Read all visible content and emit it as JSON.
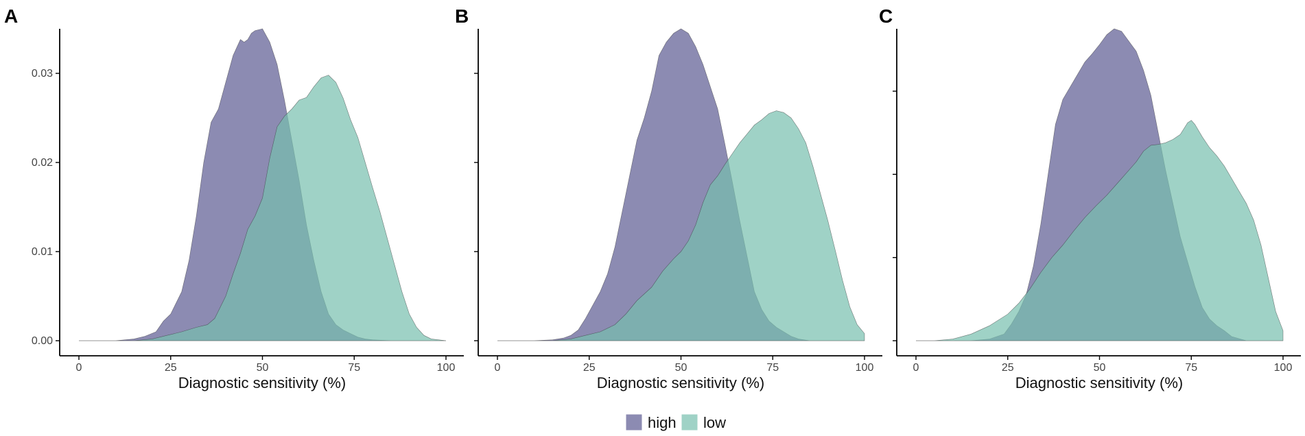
{
  "colors": {
    "high": "#5b5a92",
    "low": "#76bfae",
    "axis": "#000000"
  },
  "legend": {
    "items": [
      {
        "key": "high",
        "label": "high"
      },
      {
        "key": "low",
        "label": "low"
      }
    ]
  },
  "chart_data": [
    {
      "type": "area",
      "panel_label": "A",
      "xlabel": "Diagnostic sensitivity (%)",
      "ylabel": "",
      "xlim": [
        0,
        100
      ],
      "ylim": [
        0,
        0.035
      ],
      "x_ticks": [
        0,
        25,
        50,
        75,
        100
      ],
      "x_tick_labels": [
        "0",
        "25",
        "50",
        "75",
        "100"
      ],
      "y_ticks": [
        0,
        0.01,
        0.02,
        0.03
      ],
      "y_tick_labels": [
        "0.00",
        "0.01",
        "0.02",
        "0.03"
      ],
      "series": [
        {
          "name": "high",
          "x": [
            0,
            10,
            15,
            18,
            21,
            23,
            25,
            28,
            30,
            32,
            34,
            36,
            38,
            40,
            42,
            44,
            45,
            46,
            47,
            48,
            50,
            52,
            54,
            56,
            58,
            60,
            62,
            64,
            66,
            68,
            70,
            72,
            74,
            76,
            78,
            80,
            85,
            90,
            100
          ],
          "values": [
            0,
            0,
            0.0002,
            0.0005,
            0.001,
            0.0022,
            0.003,
            0.0055,
            0.009,
            0.014,
            0.02,
            0.0245,
            0.026,
            0.029,
            0.032,
            0.0338,
            0.0335,
            0.0338,
            0.0345,
            0.0348,
            0.035,
            0.0335,
            0.031,
            0.027,
            0.0225,
            0.018,
            0.013,
            0.009,
            0.0055,
            0.003,
            0.0018,
            0.0012,
            0.0008,
            0.0004,
            0.0002,
            0.0001,
            0,
            0,
            0
          ]
        },
        {
          "name": "low",
          "x": [
            0,
            15,
            20,
            24,
            28,
            32,
            35,
            37,
            40,
            42,
            44,
            46,
            48,
            50,
            52,
            54,
            56,
            58,
            60,
            62,
            64,
            66,
            68,
            70,
            72,
            74,
            76,
            78,
            80,
            82,
            84,
            86,
            88,
            90,
            92,
            94,
            96,
            100
          ],
          "values": [
            0,
            0,
            0.0002,
            0.0006,
            0.001,
            0.0015,
            0.0018,
            0.0025,
            0.005,
            0.0075,
            0.0098,
            0.0125,
            0.014,
            0.016,
            0.0205,
            0.024,
            0.0252,
            0.026,
            0.027,
            0.0273,
            0.0285,
            0.0295,
            0.0298,
            0.029,
            0.0272,
            0.0248,
            0.0228,
            0.02,
            0.0172,
            0.0145,
            0.0115,
            0.0085,
            0.0055,
            0.003,
            0.0015,
            0.0006,
            0.0002,
            0
          ]
        }
      ]
    },
    {
      "type": "area",
      "panel_label": "B",
      "xlabel": "Diagnostic sensitivity (%)",
      "ylabel": "",
      "xlim": [
        0,
        100
      ],
      "ylim": [
        0,
        0.035
      ],
      "x_ticks": [
        0,
        25,
        50,
        75,
        100
      ],
      "x_tick_labels": [
        "0",
        "25",
        "50",
        "75",
        "100"
      ],
      "y_ticks": [
        0,
        0.01,
        0.02,
        0.03
      ],
      "y_tick_labels": [
        "",
        "",
        "",
        ""
      ],
      "series": [
        {
          "name": "high",
          "x": [
            0,
            10,
            15,
            18,
            20,
            22,
            24,
            26,
            28,
            30,
            32,
            34,
            36,
            38,
            40,
            42,
            44,
            46,
            48,
            50,
            52,
            54,
            56,
            58,
            60,
            62,
            64,
            66,
            68,
            70,
            72,
            74,
            76,
            78,
            80,
            82,
            85,
            90,
            100
          ],
          "values": [
            0,
            0,
            0.0001,
            0.0003,
            0.0006,
            0.0012,
            0.0025,
            0.004,
            0.0055,
            0.0075,
            0.0105,
            0.0145,
            0.0185,
            0.0225,
            0.025,
            0.028,
            0.032,
            0.0335,
            0.0345,
            0.035,
            0.0345,
            0.033,
            0.031,
            0.0285,
            0.026,
            0.022,
            0.0178,
            0.0135,
            0.0095,
            0.0055,
            0.0035,
            0.0022,
            0.0015,
            0.001,
            0.0005,
            0.0002,
            0,
            0,
            0
          ]
        },
        {
          "name": "low",
          "x": [
            0,
            15,
            20,
            24,
            28,
            32,
            35,
            38,
            42,
            45,
            48,
            50,
            52,
            54,
            56,
            58,
            60,
            62,
            64,
            66,
            68,
            70,
            72,
            74,
            76,
            78,
            80,
            82,
            84,
            86,
            88,
            90,
            92,
            94,
            96,
            98,
            100
          ],
          "values": [
            0,
            0,
            0.0002,
            0.0006,
            0.001,
            0.0018,
            0.003,
            0.0045,
            0.006,
            0.0078,
            0.0092,
            0.01,
            0.0112,
            0.013,
            0.0155,
            0.0175,
            0.0185,
            0.0198,
            0.021,
            0.0222,
            0.0232,
            0.0242,
            0.0248,
            0.0255,
            0.0258,
            0.0256,
            0.025,
            0.0238,
            0.0222,
            0.0195,
            0.0165,
            0.0135,
            0.0102,
            0.0068,
            0.0038,
            0.0018,
            0.0008
          ]
        }
      ]
    },
    {
      "type": "area",
      "panel_label": "C",
      "xlabel": "Diagnostic sensitivity (%)",
      "ylabel": "",
      "xlim": [
        0,
        100
      ],
      "ylim": [
        0,
        0.0375
      ],
      "x_ticks": [
        0,
        25,
        50,
        75,
        100
      ],
      "x_tick_labels": [
        "0",
        "25",
        "50",
        "75",
        "100"
      ],
      "y_ticks": [
        0,
        0.01,
        0.02,
        0.03
      ],
      "y_tick_labels": [
        "",
        "",
        "",
        ""
      ],
      "series": [
        {
          "name": "high",
          "x": [
            0,
            15,
            20,
            24,
            26,
            28,
            30,
            32,
            34,
            36,
            38,
            40,
            42,
            44,
            46,
            48,
            50,
            52,
            54,
            56,
            58,
            60,
            62,
            64,
            66,
            68,
            70,
            72,
            74,
            76,
            78,
            80,
            82,
            84,
            86,
            90,
            100
          ],
          "values": [
            0,
            0,
            0.0002,
            0.0008,
            0.002,
            0.0035,
            0.0055,
            0.009,
            0.014,
            0.02,
            0.026,
            0.029,
            0.0305,
            0.032,
            0.0335,
            0.0345,
            0.0356,
            0.0368,
            0.0375,
            0.0372,
            0.036,
            0.0348,
            0.0325,
            0.0295,
            0.025,
            0.0205,
            0.0165,
            0.0125,
            0.0095,
            0.0065,
            0.004,
            0.0026,
            0.0018,
            0.0012,
            0.0005,
            0,
            0
          ]
        },
        {
          "name": "low",
          "x": [
            0,
            5,
            10,
            15,
            20,
            25,
            28,
            31,
            34,
            37,
            40,
            43,
            46,
            49,
            52,
            55,
            58,
            60,
            62,
            64,
            66,
            68,
            70,
            72,
            74,
            75,
            76,
            78,
            80,
            82,
            84,
            86,
            88,
            90,
            92,
            94,
            96,
            98,
            100
          ],
          "values": [
            0,
            0,
            0.0002,
            0.0008,
            0.0018,
            0.0032,
            0.0045,
            0.0062,
            0.0082,
            0.01,
            0.0115,
            0.0132,
            0.0148,
            0.0162,
            0.0175,
            0.019,
            0.0205,
            0.0215,
            0.0228,
            0.0235,
            0.0236,
            0.0238,
            0.0242,
            0.0248,
            0.0262,
            0.0265,
            0.026,
            0.0245,
            0.0232,
            0.0222,
            0.021,
            0.0195,
            0.018,
            0.0165,
            0.0145,
            0.0115,
            0.0075,
            0.0035,
            0.0012
          ]
        }
      ]
    }
  ]
}
